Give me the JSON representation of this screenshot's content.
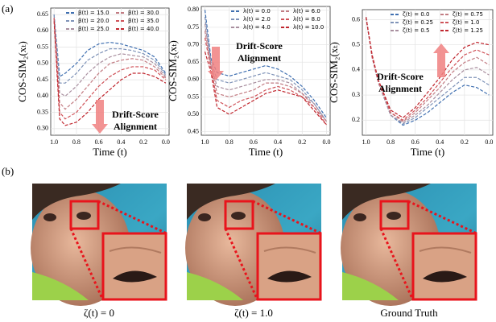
{
  "panel_labels": [
    "(a)",
    "(b)"
  ],
  "chart_data": [
    {
      "type": "line",
      "y_label": "COS-SIM₂(xₜ)",
      "x_label": "Time (t)",
      "annotation": [
        "Drift-Score",
        "Alignment"
      ],
      "x": [
        1.0,
        0.95,
        0.9,
        0.8,
        0.7,
        0.6,
        0.5,
        0.4,
        0.3,
        0.2,
        0.1,
        0.0
      ],
      "xlim": [
        1.03,
        -0.03
      ],
      "xticks": [
        {
          "value": 1,
          "label": "1.0"
        },
        0.8,
        0.6,
        0.4,
        0.2,
        {
          "value": 0,
          "label": "0.0"
        }
      ],
      "ylim": [
        0.28,
        0.67
      ],
      "yticks": [
        {
          "value": 0.3,
          "label": "0.30"
        },
        0.35,
        {
          "value": 0.4,
          "label": "0.40"
        },
        0.45,
        {
          "value": 0.5,
          "label": "0.50"
        },
        0.55,
        {
          "value": 0.6,
          "label": "0.60"
        },
        0.65
      ],
      "grid": true,
      "series": [
        {
          "name": "β(t) = 15.0",
          "color": "#3f6fb0",
          "values": [
            0.65,
            0.46,
            0.47,
            0.5,
            0.54,
            0.56,
            0.565,
            0.56,
            0.55,
            0.54,
            0.52,
            0.47
          ]
        },
        {
          "name": "β(t) = 20.0",
          "color": "#7f93b8",
          "values": [
            0.65,
            0.44,
            0.44,
            0.47,
            0.51,
            0.53,
            0.545,
            0.545,
            0.54,
            0.53,
            0.51,
            0.465
          ]
        },
        {
          "name": "β(t) = 25.0",
          "color": "#a98f9f",
          "values": [
            0.64,
            0.41,
            0.4,
            0.43,
            0.47,
            0.5,
            0.52,
            0.53,
            0.525,
            0.52,
            0.5,
            0.46
          ]
        },
        {
          "name": "β(t) = 30.0",
          "color": "#c27c83",
          "values": [
            0.64,
            0.38,
            0.36,
            0.39,
            0.43,
            0.47,
            0.5,
            0.51,
            0.515,
            0.51,
            0.49,
            0.455
          ]
        },
        {
          "name": "β(t) = 35.0",
          "color": "#cf5258",
          "values": [
            0.64,
            0.35,
            0.33,
            0.35,
            0.39,
            0.43,
            0.46,
            0.48,
            0.49,
            0.49,
            0.48,
            0.45
          ]
        },
        {
          "name": "β(t) = 40.0",
          "color": "#c0262e",
          "values": [
            0.63,
            0.33,
            0.31,
            0.32,
            0.35,
            0.39,
            0.42,
            0.45,
            0.47,
            0.47,
            0.46,
            0.44
          ]
        }
      ]
    },
    {
      "type": "line",
      "y_label": "COS-SIM₂(xₜ)",
      "x_label": "Time (t)",
      "annotation": [
        "Drift-Score",
        "Alignment"
      ],
      "x": [
        1.0,
        0.95,
        0.9,
        0.8,
        0.7,
        0.6,
        0.5,
        0.4,
        0.3,
        0.2,
        0.1,
        0.0
      ],
      "xlim": [
        1.03,
        -0.03
      ],
      "xticks": [
        {
          "value": 1,
          "label": "1.0"
        },
        0.8,
        0.6,
        0.4,
        0.2,
        {
          "value": 0,
          "label": "0.0"
        }
      ],
      "ylim": [
        0.44,
        0.81
      ],
      "yticks": [
        0.45,
        {
          "value": 0.5,
          "label": "0.50"
        },
        0.55,
        {
          "value": 0.6,
          "label": "0.60"
        },
        0.65,
        {
          "value": 0.7,
          "label": "0.70"
        },
        0.75,
        {
          "value": 0.8,
          "label": "0.80"
        }
      ],
      "grid": true,
      "series": [
        {
          "name": "λ(t) = 0.0",
          "color": "#3f6fb0",
          "values": [
            0.8,
            0.66,
            0.62,
            0.61,
            0.62,
            0.63,
            0.64,
            0.63,
            0.61,
            0.58,
            0.54,
            0.49
          ]
        },
        {
          "name": "λ(t) = 2.0",
          "color": "#7f93b8",
          "values": [
            0.78,
            0.65,
            0.6,
            0.59,
            0.6,
            0.61,
            0.62,
            0.61,
            0.6,
            0.57,
            0.53,
            0.48
          ]
        },
        {
          "name": "λ(t) = 4.0",
          "color": "#a98f9f",
          "values": [
            0.76,
            0.64,
            0.58,
            0.57,
            0.58,
            0.59,
            0.6,
            0.6,
            0.59,
            0.56,
            0.53,
            0.48
          ]
        },
        {
          "name": "λ(t) = 6.0",
          "color": "#c27c83",
          "values": [
            0.74,
            0.64,
            0.56,
            0.55,
            0.56,
            0.57,
            0.59,
            0.59,
            0.58,
            0.56,
            0.52,
            0.48
          ]
        },
        {
          "name": "λ(t) = 8.0",
          "color": "#cf5258",
          "values": [
            0.72,
            0.63,
            0.54,
            0.52,
            0.54,
            0.55,
            0.57,
            0.58,
            0.57,
            0.55,
            0.52,
            0.47
          ]
        },
        {
          "name": "λ(t) = 10.0",
          "color": "#c0262e",
          "values": [
            0.68,
            0.62,
            0.52,
            0.5,
            0.52,
            0.54,
            0.56,
            0.57,
            0.56,
            0.55,
            0.51,
            0.47
          ]
        }
      ]
    },
    {
      "type": "line",
      "y_label": "COS-SIM₂(xₜ)",
      "x_label": "Time (t)",
      "annotation": [
        "Drift-Score",
        "Alignment"
      ],
      "x": [
        1.0,
        0.95,
        0.9,
        0.8,
        0.7,
        0.6,
        0.5,
        0.4,
        0.3,
        0.2,
        0.1,
        0.0
      ],
      "xlim": [
        1.03,
        -0.03
      ],
      "xticks": [
        {
          "value": 1,
          "label": "1.0"
        },
        0.8,
        0.6,
        0.4,
        0.2,
        {
          "value": 0,
          "label": "0.0"
        }
      ],
      "ylim": [
        0.14,
        0.64
      ],
      "yticks": [
        0.2,
        0.3,
        0.4,
        0.5,
        0.6
      ],
      "grid": true,
      "series": [
        {
          "name": "ζ(t) = 0.0",
          "color": "#3f6fb0",
          "values": [
            0.61,
            0.45,
            0.35,
            0.22,
            0.18,
            0.2,
            0.23,
            0.27,
            0.31,
            0.34,
            0.33,
            0.3
          ]
        },
        {
          "name": "ζ(t) = 0.25",
          "color": "#7f93b8",
          "values": [
            0.61,
            0.45,
            0.35,
            0.22,
            0.185,
            0.21,
            0.25,
            0.29,
            0.33,
            0.37,
            0.37,
            0.34
          ]
        },
        {
          "name": "ζ(t) = 0.5",
          "color": "#a98f9f",
          "values": [
            0.61,
            0.45,
            0.35,
            0.22,
            0.19,
            0.22,
            0.26,
            0.31,
            0.36,
            0.4,
            0.41,
            0.38
          ]
        },
        {
          "name": "ζ(t) = 0.75",
          "color": "#c27c83",
          "values": [
            0.61,
            0.45,
            0.35,
            0.23,
            0.195,
            0.23,
            0.28,
            0.33,
            0.39,
            0.43,
            0.45,
            0.42
          ]
        },
        {
          "name": "ζ(t) = 1.0",
          "color": "#cf5258",
          "values": [
            0.61,
            0.45,
            0.36,
            0.23,
            0.2,
            0.24,
            0.29,
            0.35,
            0.41,
            0.46,
            0.48,
            0.46
          ]
        },
        {
          "name": "ζ(t) = 1.25",
          "color": "#c0262e",
          "values": [
            0.61,
            0.46,
            0.36,
            0.24,
            0.21,
            0.25,
            0.31,
            0.37,
            0.44,
            0.49,
            0.51,
            0.5
          ]
        }
      ]
    }
  ],
  "image_captions": [
    "ζ(t) = 0",
    "ζ(t) = 1.0",
    "Ground Truth"
  ]
}
